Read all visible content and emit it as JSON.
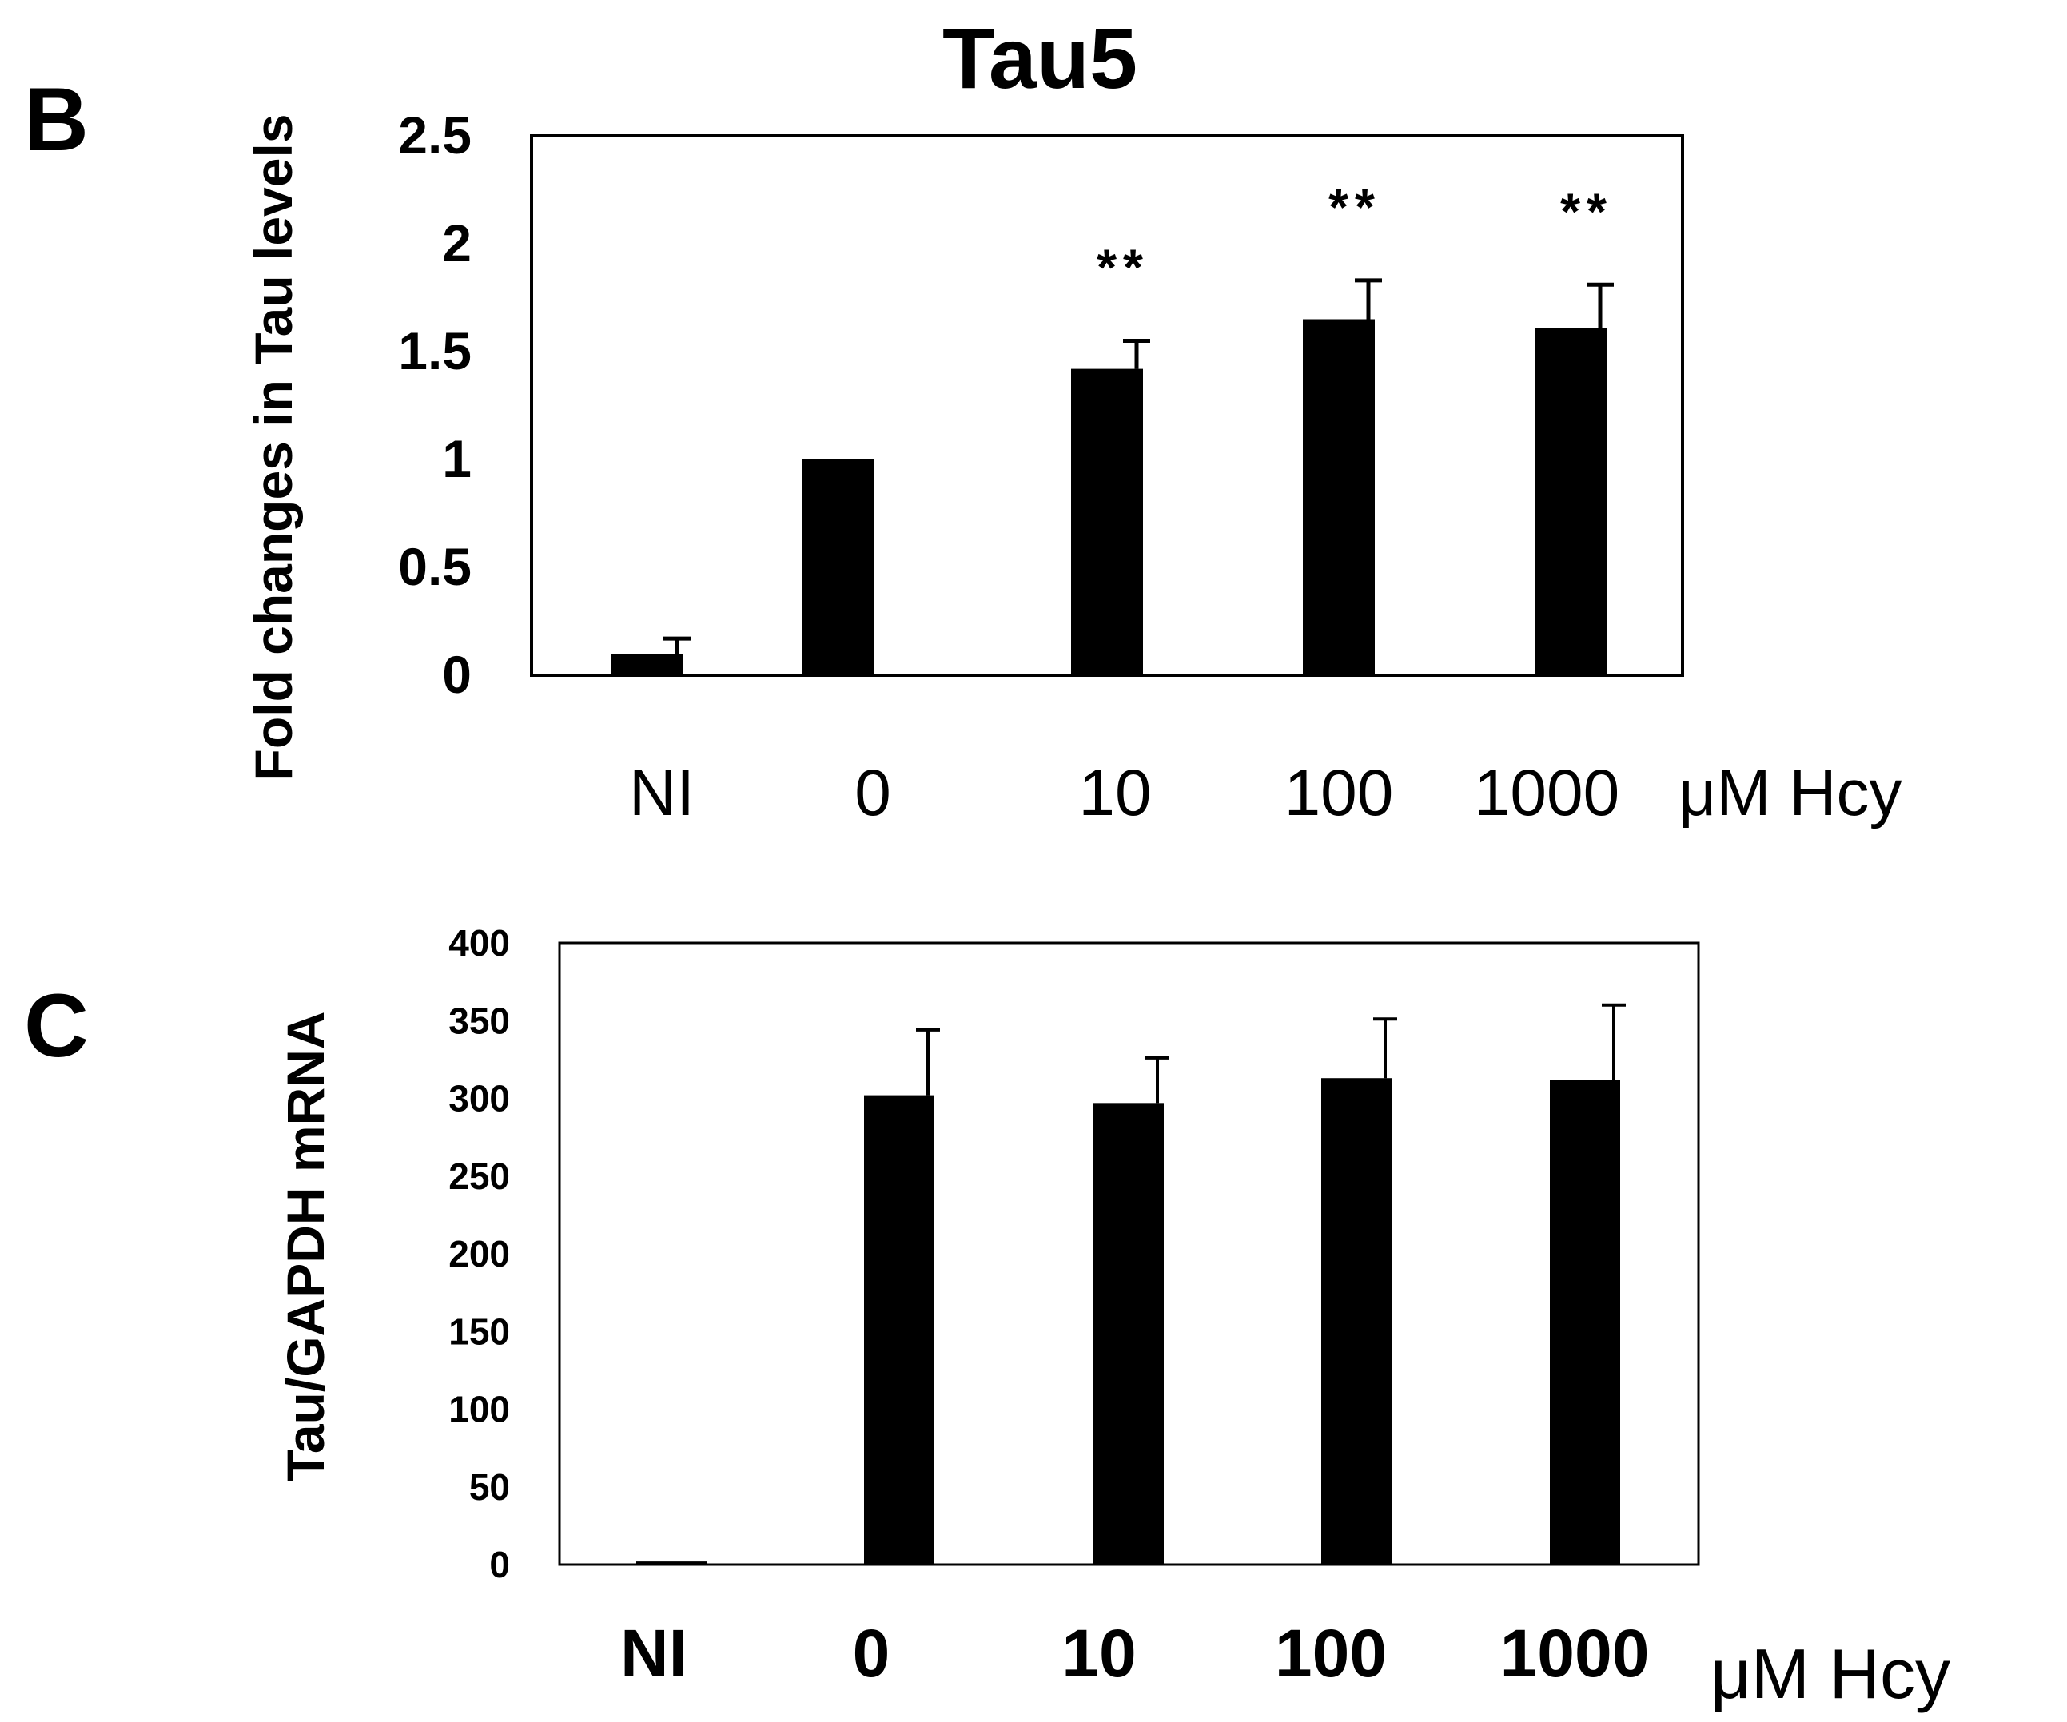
{
  "chart_data": [
    {
      "panel": "B",
      "type": "bar",
      "title": "Tau5",
      "ylabel": "Fold changes in Tau levels",
      "xlabel": "",
      "unit_label": "μM Hcy",
      "categories": [
        "NI",
        "0",
        "10",
        "100",
        "1000"
      ],
      "values": [
        0.1,
        1.0,
        1.42,
        1.65,
        1.61
      ],
      "errors": [
        0.07,
        0.0,
        0.13,
        0.18,
        0.2
      ],
      "annotations": [
        "",
        "",
        "**",
        "**",
        "**"
      ],
      "ylim": [
        0,
        2.5
      ],
      "yticks": [
        "0",
        "0.5",
        "1",
        "1.5",
        "2",
        "2.5"
      ],
      "bar_color": "#000000",
      "grid": false
    },
    {
      "panel": "C",
      "type": "bar",
      "title": "",
      "ylabel": "Tau/GAPDH mRNA",
      "xlabel": "",
      "unit_label": "μM Hcy",
      "categories": [
        "NI",
        "0",
        "10",
        "100",
        "1000"
      ],
      "values": [
        2,
        302,
        297,
        313,
        312
      ],
      "errors": [
        0,
        42,
        29,
        38,
        48
      ],
      "annotations": [
        "",
        "",
        "",
        "",
        ""
      ],
      "ylim": [
        0,
        400
      ],
      "yticks": [
        "0",
        "50",
        "100",
        "150",
        "200",
        "250",
        "300",
        "350",
        "400"
      ],
      "bar_color": "#000000",
      "grid": false
    }
  ]
}
